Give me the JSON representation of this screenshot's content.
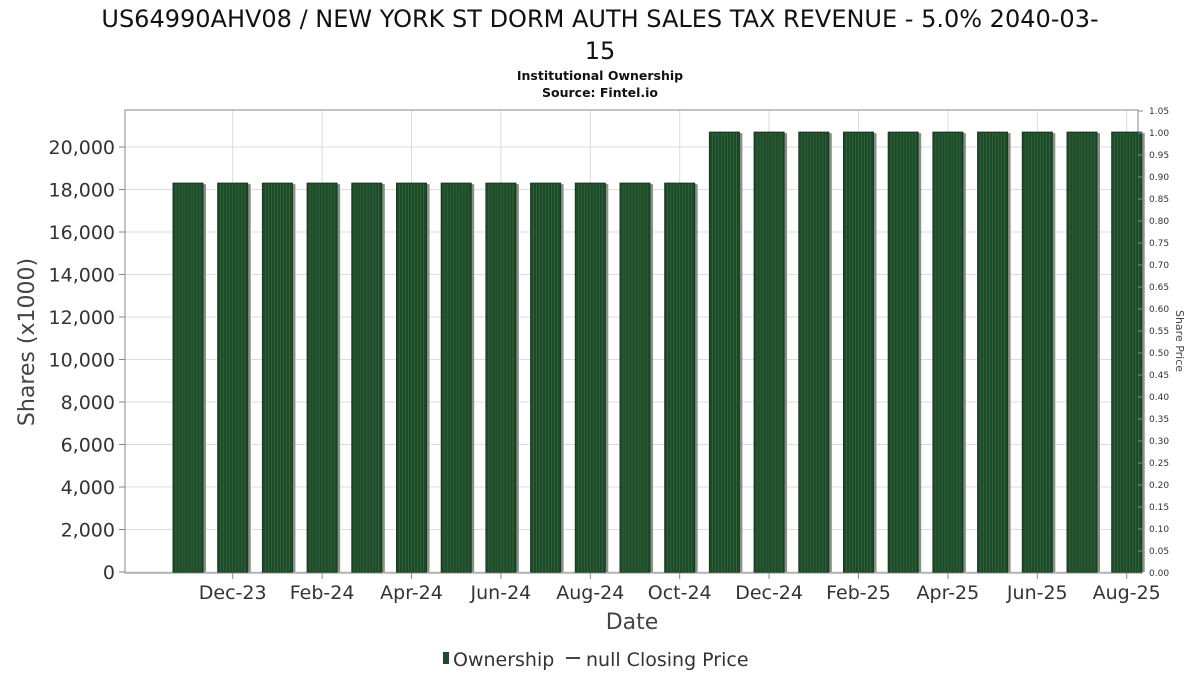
{
  "title_line1": "US64990AHV08 / NEW YORK ST DORM AUTH SALES TAX REVENUE - 5.0% 2040-03-",
  "title_line2": "15",
  "subtitle": "Institutional Ownership",
  "source": "Source: Fintel.io",
  "colors": {
    "bar": "#1f4a2a",
    "bar_shadow": "#8a8f8a",
    "grid": "#dcdcdc",
    "frame": "#888888"
  },
  "chart_data": {
    "type": "bar",
    "xlabel": "Date",
    "ylabel": "Shares (x1000)",
    "y2label": "Share Price",
    "ylim": [
      0,
      21800
    ],
    "y2lim": [
      0,
      1.05
    ],
    "yticks": [
      0,
      2000,
      4000,
      6000,
      8000,
      10000,
      12000,
      14000,
      16000,
      18000,
      20000
    ],
    "ytick_labels": [
      "0",
      "2,000",
      "4,000",
      "6,000",
      "8,000",
      "10,000",
      "12,000",
      "14,000",
      "16,000",
      "18,000",
      "20,000"
    ],
    "y2tick_labels": [
      "0.00",
      "0.05",
      "0.10",
      "0.15",
      "0.20",
      "0.25",
      "0.30",
      "0.35",
      "0.40",
      "0.45",
      "0.50",
      "0.55",
      "0.60",
      "0.65",
      "0.70",
      "0.75",
      "0.80",
      "0.85",
      "0.90",
      "0.95",
      "1.00",
      "1.05"
    ],
    "xtick_labels": [
      "Dec-23",
      "Feb-24",
      "Apr-24",
      "Jun-24",
      "Aug-24",
      "Oct-24",
      "Dec-24",
      "Feb-25",
      "Apr-25",
      "Jun-25",
      "Aug-25"
    ],
    "categories": [
      "2023-11",
      "2023-12",
      "2024-01",
      "2024-02",
      "2024-03",
      "2024-04",
      "2024-05",
      "2024-06",
      "2024-07",
      "2024-08",
      "2024-09",
      "2024-10",
      "2024-11",
      "2024-12",
      "2025-01",
      "2025-02",
      "2025-03",
      "2025-04",
      "2025-05",
      "2025-06",
      "2025-07",
      "2025-08"
    ],
    "series": [
      {
        "name": "Ownership",
        "values": [
          18300,
          18300,
          18300,
          18300,
          18300,
          18300,
          18300,
          18300,
          18300,
          18300,
          18300,
          18300,
          20700,
          20700,
          20700,
          20700,
          20700,
          20700,
          20700,
          20700,
          20700,
          20700
        ]
      }
    ],
    "legend": [
      {
        "label": "Ownership",
        "marker": "bar"
      },
      {
        "label": "null Closing Price",
        "marker": "line"
      }
    ],
    "legend_position": "bottom",
    "grid": true
  }
}
